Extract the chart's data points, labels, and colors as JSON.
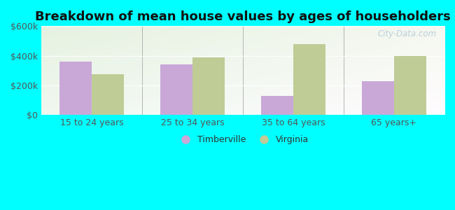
{
  "title": "Breakdown of mean house values by ages of householders",
  "categories": [
    "15 to 24 years",
    "25 to 34 years",
    "35 to 64 years",
    "65 years+"
  ],
  "timberville": [
    360000,
    340000,
    130000,
    230000
  ],
  "virginia": [
    275000,
    390000,
    480000,
    400000
  ],
  "timberville_color": "#c9a8d8",
  "virginia_color": "#bfcc96",
  "ylim": [
    0,
    600000
  ],
  "yticks": [
    0,
    200000,
    400000,
    600000
  ],
  "ytick_labels": [
    "$0",
    "$200k",
    "$400k",
    "$600k"
  ],
  "legend_timberville": "Timberville",
  "legend_virginia": "Virginia",
  "background_color": "#00ffff",
  "bar_width": 0.32,
  "watermark": "City-Data.com",
  "tick_color": "#555555",
  "tick_fontsize": 9,
  "title_fontsize": 13
}
